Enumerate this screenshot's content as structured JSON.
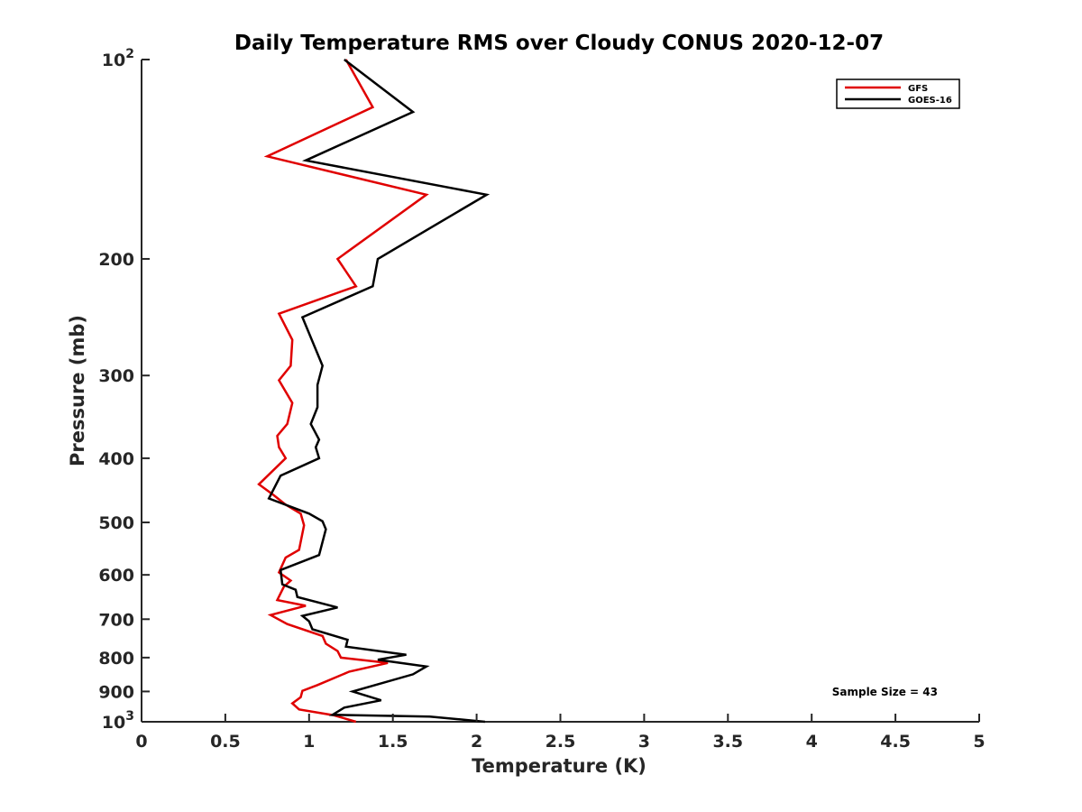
{
  "chart_data": {
    "type": "line",
    "title": "Daily Temperature RMS over Cloudy CONUS 2020-12-07",
    "xlabel": "Temperature (K)",
    "ylabel": "Pressure (mb)",
    "xlim": [
      0,
      5
    ],
    "ylim": [
      100,
      1000
    ],
    "y_scale": "log",
    "y_reversed": true,
    "grid": false,
    "legend_position": "top-right",
    "x_ticks": [
      {
        "value": 0,
        "label": "0"
      },
      {
        "value": 0.5,
        "label": "0.5"
      },
      {
        "value": 1,
        "label": "1"
      },
      {
        "value": 1.5,
        "label": "1.5"
      },
      {
        "value": 2,
        "label": "2"
      },
      {
        "value": 2.5,
        "label": "2.5"
      },
      {
        "value": 3,
        "label": "3"
      },
      {
        "value": 3.5,
        "label": "3.5"
      },
      {
        "value": 4,
        "label": "4"
      },
      {
        "value": 4.5,
        "label": "4.5"
      },
      {
        "value": 5,
        "label": "5"
      }
    ],
    "y_ticks": [
      {
        "value": 100,
        "base": "10",
        "exp": "2"
      },
      {
        "value": 200,
        "base": "200",
        "exp": ""
      },
      {
        "value": 300,
        "base": "300",
        "exp": ""
      },
      {
        "value": 400,
        "base": "400",
        "exp": ""
      },
      {
        "value": 500,
        "base": "500",
        "exp": ""
      },
      {
        "value": 600,
        "base": "600",
        "exp": ""
      },
      {
        "value": 700,
        "base": "700",
        "exp": ""
      },
      {
        "value": 800,
        "base": "800",
        "exp": ""
      },
      {
        "value": 900,
        "base": "900",
        "exp": ""
      },
      {
        "value": 1000,
        "base": "10",
        "exp": "3"
      }
    ],
    "y_minor_ticks": [],
    "series": [
      {
        "name": "GFS",
        "color": "#e00000",
        "points": [
          [
            1.22,
            100
          ],
          [
            1.38,
            118
          ],
          [
            0.75,
            140
          ],
          [
            1.7,
            160
          ],
          [
            1.17,
            200
          ],
          [
            1.28,
            220
          ],
          [
            0.82,
            242
          ],
          [
            0.9,
            265
          ],
          [
            0.89,
            290
          ],
          [
            0.82,
            305
          ],
          [
            0.9,
            330
          ],
          [
            0.87,
            355
          ],
          [
            0.81,
            370
          ],
          [
            0.82,
            385
          ],
          [
            0.86,
            400
          ],
          [
            0.7,
            438
          ],
          [
            0.79,
            455
          ],
          [
            0.86,
            470
          ],
          [
            0.95,
            485
          ],
          [
            0.97,
            505
          ],
          [
            0.94,
            550
          ],
          [
            0.86,
            565
          ],
          [
            0.82,
            595
          ],
          [
            0.89,
            612
          ],
          [
            0.85,
            625
          ],
          [
            0.81,
            655
          ],
          [
            0.98,
            668
          ],
          [
            0.77,
            690
          ],
          [
            0.87,
            712
          ],
          [
            1.08,
            742
          ],
          [
            1.1,
            762
          ],
          [
            1.17,
            782
          ],
          [
            1.19,
            800
          ],
          [
            1.47,
            815
          ],
          [
            1.24,
            840
          ],
          [
            1.05,
            880
          ],
          [
            0.96,
            898
          ],
          [
            0.95,
            918
          ],
          [
            0.9,
            938
          ],
          [
            0.94,
            958
          ],
          [
            1.15,
            978
          ],
          [
            1.28,
            1000
          ]
        ]
      },
      {
        "name": "GOES-16",
        "color": "#000000",
        "points": [
          [
            1.21,
            100
          ],
          [
            1.62,
            120
          ],
          [
            0.98,
            142
          ],
          [
            2.06,
            160
          ],
          [
            1.41,
            200
          ],
          [
            1.38,
            220
          ],
          [
            0.96,
            245
          ],
          [
            1.08,
            290
          ],
          [
            1.05,
            310
          ],
          [
            1.05,
            335
          ],
          [
            1.01,
            355
          ],
          [
            1.06,
            375
          ],
          [
            1.04,
            385
          ],
          [
            1.06,
            400
          ],
          [
            0.83,
            425
          ],
          [
            0.76,
            460
          ],
          [
            1.0,
            485
          ],
          [
            1.08,
            498
          ],
          [
            1.1,
            512
          ],
          [
            1.06,
            560
          ],
          [
            0.83,
            590
          ],
          [
            0.84,
            620
          ],
          [
            0.92,
            632
          ],
          [
            0.93,
            648
          ],
          [
            1.17,
            672
          ],
          [
            0.96,
            692
          ],
          [
            1.0,
            705
          ],
          [
            1.02,
            725
          ],
          [
            1.23,
            752
          ],
          [
            1.22,
            770
          ],
          [
            1.58,
            792
          ],
          [
            1.41,
            806
          ],
          [
            1.7,
            825
          ],
          [
            1.62,
            848
          ],
          [
            1.26,
            900
          ],
          [
            1.43,
            928
          ],
          [
            1.21,
            952
          ],
          [
            1.14,
            976
          ],
          [
            1.72,
            982
          ],
          [
            2.05,
            1000
          ]
        ]
      }
    ],
    "annotations": [
      {
        "text": "Sample Size = 43"
      }
    ]
  }
}
